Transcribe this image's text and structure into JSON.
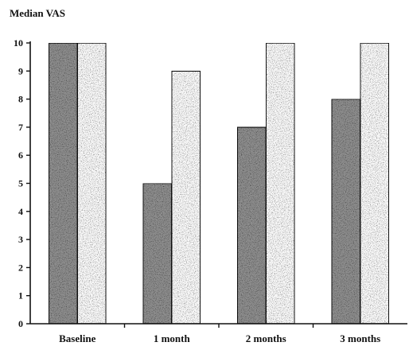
{
  "chart_data": {
    "type": "bar",
    "ylabel": "Median VAS",
    "categories": [
      "Baseline",
      "1 month",
      "2 months",
      "3 months"
    ],
    "yticks": [
      0,
      1,
      2,
      3,
      4,
      5,
      6,
      7,
      8,
      9,
      10
    ],
    "ylim": [
      0,
      10
    ],
    "grid": false,
    "legend": "none",
    "series": [
      {
        "values": [
          10,
          5,
          7,
          8
        ],
        "color": "#8f8f8f"
      },
      {
        "values": [
          10,
          9,
          10,
          10
        ],
        "color": "#fbfbfb"
      }
    ]
  }
}
